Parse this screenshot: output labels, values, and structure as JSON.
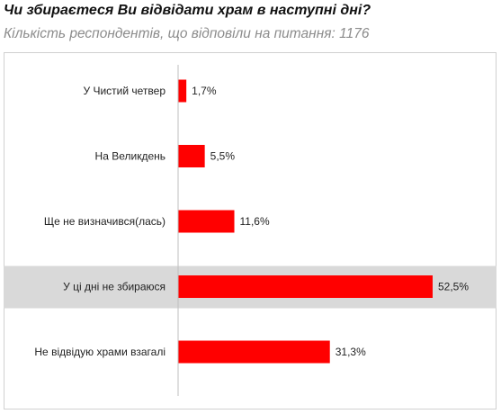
{
  "title": "Чи збираєтеся Ви відвідати храм в наступні дні?",
  "subtitle": "Кількість респондентів, що відповіли на питання: 1176",
  "chart_data": {
    "type": "bar",
    "orientation": "horizontal",
    "categories": [
      "У Чистий четвер",
      "На Великдень",
      "Ще не визначився(лась)",
      "У ці дні не збираюся",
      "Не відвідую храми взагалі"
    ],
    "values": [
      1.7,
      5.5,
      11.6,
      52.5,
      31.3
    ],
    "value_labels": [
      "1,7%",
      "5,5%",
      "11,6%",
      "52,5%",
      "31,3%"
    ],
    "highlighted_index": 3,
    "xlim": [
      0,
      55
    ],
    "grid": false,
    "colors": {
      "bar": "#ff0000",
      "highlight_band": "#d9d9d9",
      "axis": "#bfbfbf"
    }
  }
}
